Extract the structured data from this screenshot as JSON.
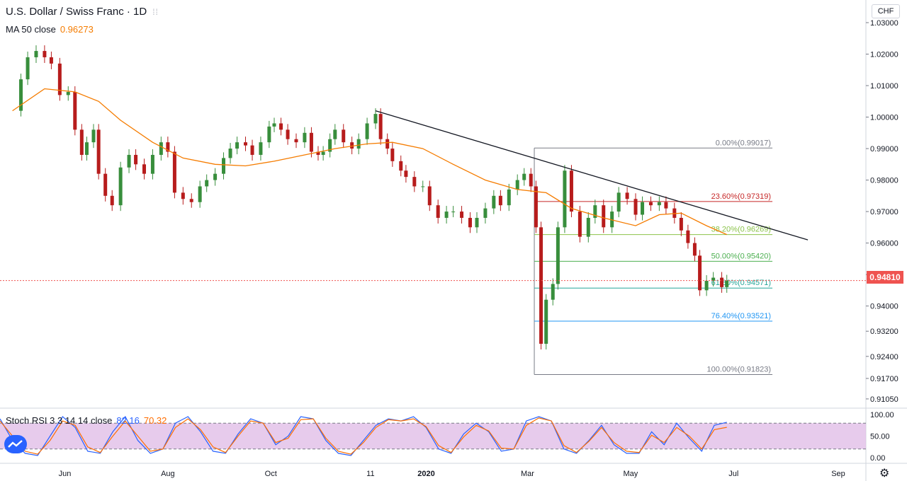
{
  "title": "U.S. Dollar / Swiss Franc · 1D",
  "ma": {
    "label": "MA 50 close",
    "value": "0.96273"
  },
  "stoch": {
    "label": "Stoch RSI 3 3 14 14 close",
    "k": "82.16",
    "d": "70.32"
  },
  "currency": "CHF",
  "last_price": "0.94810",
  "colors": {
    "up": "#26a69a",
    "down": "#ef5350",
    "candle_up": "#388e3c",
    "candle_down": "#b71c1c",
    "ma": "#f57c00",
    "k": "#2962ff",
    "d": "#ff6d00",
    "stoch_band": "#e1bee7"
  },
  "chart_data": [
    {
      "type": "candlestick",
      "title": "U.S. Dollar / Swiss Franc · 1D",
      "x_tick_labels": [
        "Jun",
        "Aug",
        "Oct",
        "11",
        "2020",
        "Mar",
        "May",
        "Jul",
        "Sep"
      ],
      "y_tick_labels": [
        "1.03000",
        "1.02000",
        "1.01000",
        "1.00000",
        "0.99000",
        "0.98000",
        "0.97000",
        "0.96000",
        "0.95000",
        "0.94000",
        "0.93200",
        "0.92400",
        "0.91700",
        "0.91050"
      ],
      "ylim": [
        0.9105,
        1.0325
      ],
      "close_series": [
        [
          "2019-05-01",
          1.002
        ],
        [
          "2019-05-06",
          1.012
        ],
        [
          "2019-05-10",
          1.019
        ],
        [
          "2019-05-15",
          1.021
        ],
        [
          "2019-05-20",
          1.019
        ],
        [
          "2019-05-24",
          1.017
        ],
        [
          "2019-05-29",
          1.007
        ],
        [
          "2019-06-03",
          1.008
        ],
        [
          "2019-06-07",
          0.996
        ],
        [
          "2019-06-11",
          0.988
        ],
        [
          "2019-06-14",
          0.992
        ],
        [
          "2019-06-18",
          0.996
        ],
        [
          "2019-06-21",
          0.982
        ],
        [
          "2019-06-25",
          0.975
        ],
        [
          "2019-06-29",
          0.972
        ],
        [
          "2019-07-04",
          0.984
        ],
        [
          "2019-07-09",
          0.988
        ],
        [
          "2019-07-13",
          0.985
        ],
        [
          "2019-07-18",
          0.982
        ],
        [
          "2019-07-23",
          0.988
        ],
        [
          "2019-07-28",
          0.992
        ],
        [
          "2019-08-01",
          0.989
        ],
        [
          "2019-08-05",
          0.976
        ],
        [
          "2019-08-10",
          0.974
        ],
        [
          "2019-08-15",
          0.973
        ],
        [
          "2019-08-20",
          0.978
        ],
        [
          "2019-08-24",
          0.98
        ],
        [
          "2019-08-29",
          0.982
        ],
        [
          "2019-09-03",
          0.987
        ],
        [
          "2019-09-07",
          0.99
        ],
        [
          "2019-09-11",
          0.992
        ],
        [
          "2019-09-16",
          0.991
        ],
        [
          "2019-09-20",
          0.988
        ],
        [
          "2019-09-25",
          0.992
        ],
        [
          "2019-09-30",
          0.997
        ],
        [
          "2019-10-03",
          0.998
        ],
        [
          "2019-10-07",
          0.996
        ],
        [
          "2019-10-11",
          0.993
        ],
        [
          "2019-10-16",
          0.992
        ],
        [
          "2019-10-21",
          0.995
        ],
        [
          "2019-10-25",
          0.989
        ],
        [
          "2019-10-29",
          0.988
        ],
        [
          "2019-11-01",
          0.989
        ],
        [
          "2019-11-05",
          0.993
        ],
        [
          "2019-11-08",
          0.996
        ],
        [
          "2019-11-13",
          0.992
        ],
        [
          "2019-11-18",
          0.99
        ],
        [
          "2019-11-22",
          0.993
        ],
        [
          "2019-11-27",
          0.998
        ],
        [
          "2019-12-02",
          1.001
        ],
        [
          "2019-12-05",
          0.993
        ],
        [
          "2019-12-09",
          0.99
        ],
        [
          "2019-12-12",
          0.986
        ],
        [
          "2019-12-17",
          0.983
        ],
        [
          "2019-12-20",
          0.981
        ],
        [
          "2019-12-25",
          0.978
        ],
        [
          "2019-12-30",
          0.978
        ],
        [
          "2020-01-03",
          0.972
        ],
        [
          "2020-01-08",
          0.968
        ],
        [
          "2020-01-13",
          0.97
        ],
        [
          "2020-01-17",
          0.97
        ],
        [
          "2020-01-22",
          0.968
        ],
        [
          "2020-01-27",
          0.965
        ],
        [
          "2020-01-31",
          0.968
        ],
        [
          "2020-02-05",
          0.971
        ],
        [
          "2020-02-10",
          0.975
        ],
        [
          "2020-02-14",
          0.972
        ],
        [
          "2020-02-19",
          0.977
        ],
        [
          "2020-02-24",
          0.98
        ],
        [
          "2020-02-28",
          0.982
        ],
        [
          "2020-03-03",
          0.978
        ],
        [
          "2020-03-06",
          0.965
        ],
        [
          "2020-03-09",
          0.928
        ],
        [
          "2020-03-12",
          0.942
        ],
        [
          "2020-03-16",
          0.947
        ],
        [
          "2020-03-19",
          0.965
        ],
        [
          "2020-03-23",
          0.983
        ],
        [
          "2020-03-27",
          0.97
        ],
        [
          "2020-04-01",
          0.962
        ],
        [
          "2020-04-06",
          0.968
        ],
        [
          "2020-04-10",
          0.972
        ],
        [
          "2020-04-15",
          0.965
        ],
        [
          "2020-04-20",
          0.97
        ],
        [
          "2020-04-24",
          0.976
        ],
        [
          "2020-04-29",
          0.974
        ],
        [
          "2020-05-04",
          0.969
        ],
        [
          "2020-05-08",
          0.973
        ],
        [
          "2020-05-13",
          0.972
        ],
        [
          "2020-05-18",
          0.973
        ],
        [
          "2020-05-22",
          0.971
        ],
        [
          "2020-05-27",
          0.968
        ],
        [
          "2020-05-31",
          0.964
        ],
        [
          "2020-06-04",
          0.96
        ],
        [
          "2020-06-08",
          0.956
        ],
        [
          "2020-06-11",
          0.945
        ],
        [
          "2020-06-15",
          0.948
        ],
        [
          "2020-06-19",
          0.949
        ],
        [
          "2020-06-24",
          0.946
        ],
        [
          "2020-06-27",
          0.9481
        ]
      ],
      "ma_series": [
        [
          "2019-05-01",
          1.002
        ],
        [
          "2019-05-20",
          1.009
        ],
        [
          "2019-06-07",
          1.008
        ],
        [
          "2019-06-21",
          1.005
        ],
        [
          "2019-07-04",
          0.999
        ],
        [
          "2019-07-23",
          0.992
        ],
        [
          "2019-08-10",
          0.987
        ],
        [
          "2019-08-29",
          0.985
        ],
        [
          "2019-09-16",
          0.9845
        ],
        [
          "2019-10-03",
          0.986
        ],
        [
          "2019-10-21",
          0.988
        ],
        [
          "2019-11-08",
          0.99
        ],
        [
          "2019-11-27",
          0.9915
        ],
        [
          "2019-12-12",
          0.992
        ],
        [
          "2019-12-30",
          0.99
        ],
        [
          "2020-01-17",
          0.985
        ],
        [
          "2020-02-05",
          0.98
        ],
        [
          "2020-02-24",
          0.977
        ],
        [
          "2020-03-12",
          0.976
        ],
        [
          "2020-03-27",
          0.971
        ],
        [
          "2020-04-15",
          0.968
        ],
        [
          "2020-05-04",
          0.9655
        ],
        [
          "2020-05-18",
          0.969
        ],
        [
          "2020-05-31",
          0.9695
        ],
        [
          "2020-06-15",
          0.9655
        ],
        [
          "2020-06-27",
          0.9627
        ]
      ],
      "trendline": [
        [
          "2019-12-02",
          1.002
        ],
        [
          "2020-08-14",
          0.961
        ]
      ],
      "fibonacci": {
        "range_start": "2020-03-05",
        "range_end": "2020-07-24",
        "levels": [
          {
            "label": "0.00%(0.99017)",
            "price": 0.99017,
            "color": "#787b86"
          },
          {
            "label": "23.60%(0.97319)",
            "price": 0.97319,
            "color": "#c62828"
          },
          {
            "label": "38.20%(0.96269)",
            "price": 0.96269,
            "color": "#8bc34a"
          },
          {
            "label": "50.00%(0.95420)",
            "price": 0.9542,
            "color": "#4caf50"
          },
          {
            "label": "61.80%(0.94571)",
            "price": 0.94571,
            "color": "#26a69a"
          },
          {
            "label": "76.40%(0.93521)",
            "price": 0.93521,
            "color": "#2196f3"
          },
          {
            "label": "100.00%(0.91823)",
            "price": 0.91823,
            "color": "#787b86"
          }
        ]
      },
      "last_price": 0.9481
    },
    {
      "type": "line",
      "title": "Stoch RSI 3 3 14 14 close",
      "y_tick_labels": [
        "100.00",
        "50.00",
        "0.00"
      ],
      "ylim": [
        0,
        100
      ],
      "band": [
        20,
        80
      ],
      "series": [
        {
          "name": "K",
          "values": [
            90,
            40,
            10,
            5,
            50,
            95,
            70,
            15,
            10,
            60,
            95,
            40,
            10,
            20,
            80,
            95,
            60,
            15,
            10,
            55,
            90,
            80,
            30,
            50,
            95,
            90,
            40,
            10,
            5,
            40,
            75,
            90,
            85,
            95,
            70,
            20,
            10,
            55,
            80,
            60,
            15,
            20,
            85,
            95,
            85,
            20,
            10,
            40,
            75,
            30,
            10,
            10,
            60,
            30,
            80,
            45,
            15,
            75,
            82.16
          ]
        },
        {
          "name": "D",
          "values": [
            85,
            50,
            15,
            8,
            40,
            85,
            75,
            25,
            12,
            50,
            85,
            50,
            15,
            20,
            70,
            90,
            65,
            25,
            12,
            50,
            85,
            80,
            35,
            45,
            88,
            90,
            45,
            15,
            8,
            35,
            70,
            88,
            85,
            90,
            72,
            28,
            12,
            48,
            75,
            62,
            22,
            20,
            75,
            92,
            85,
            28,
            12,
            38,
            70,
            35,
            15,
            12,
            52,
            35,
            70,
            50,
            20,
            65,
            70.32
          ]
        }
      ]
    }
  ]
}
